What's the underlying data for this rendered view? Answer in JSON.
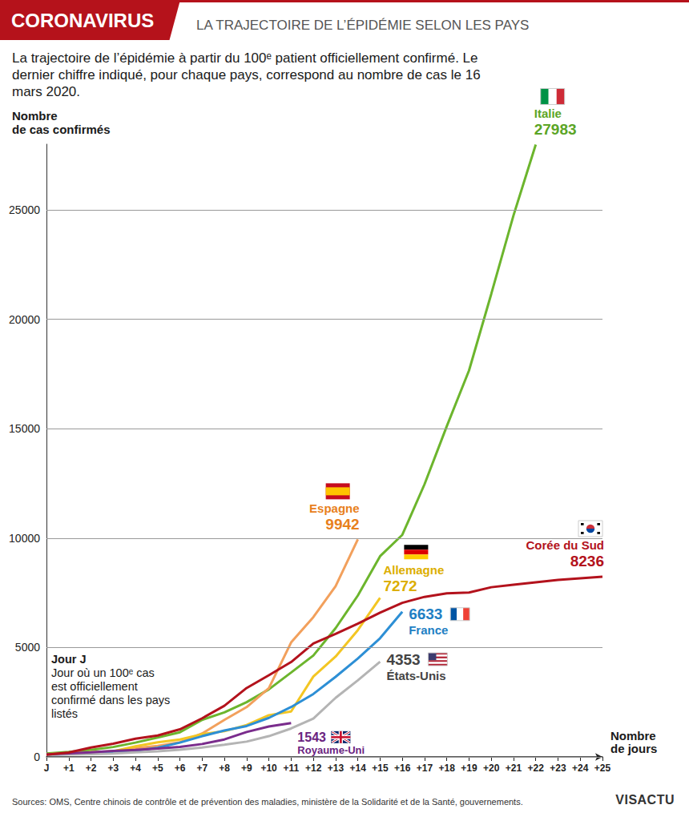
{
  "chart_data": {
    "type": "line",
    "kicker": "CORONAVIRUS",
    "title": "LA TRAJECTOIRE DE L’ÉPIDÉMIE SELON LES PAYS",
    "subtitle": "La trajectoire de l’épidémie à partir du 100ᵉ patient officiellement confirmé. Le dernier chiffre indiqué, pour chaque pays, correspond au nombre de cas le 16 mars 2020.",
    "y_label": "Nombre\nde cas confirmés",
    "x_label": "Nombre\nde jours",
    "annotation": {
      "title": "Jour J",
      "text": "Jour où un 100ᵉ cas est officiellement confirmé dans les pays listés"
    },
    "source": "Sources: OMS, Centre chinois de contrôle et de prévention des maladies, ministère de la Solidarité et de la Santé, gouvernements.",
    "credit": "VISACTU",
    "categories": [
      "J",
      "+1",
      "+2",
      "+3",
      "+4",
      "+5",
      "+6",
      "+7",
      "+8",
      "+9",
      "+10",
      "+11",
      "+12",
      "+13",
      "+14",
      "+15",
      "+16",
      "+17",
      "+18",
      "+19",
      "+20",
      "+21",
      "+22",
      "+23",
      "+24",
      "+25"
    ],
    "series": [
      {
        "name": "Italie",
        "color": "#6cb52d",
        "values": [
          155,
          229,
          322,
          453,
          655,
          888,
          1128,
          1694,
          2036,
          2502,
          3089,
          3858,
          4636,
          5883,
          7375,
          9172,
          10149,
          12462,
          15113,
          17660,
          21157,
          24747,
          27983,
          null,
          null,
          null
        ]
      },
      {
        "name": "Espagne",
        "color": "#f2a05c",
        "values": [
          120,
          165,
          222,
          259,
          400,
          500,
          673,
          1073,
          1695,
          2277,
          3146,
          5232,
          6391,
          7798,
          9942,
          null,
          null,
          null,
          null,
          null,
          null,
          null,
          null,
          null,
          null,
          null
        ]
      },
      {
        "name": "Allemagne",
        "color": "#f3c623",
        "values": [
          130,
          159,
          196,
          262,
          482,
          670,
          799,
          1040,
          1176,
          1457,
          1908,
          2078,
          3675,
          4585,
          5795,
          7272,
          null,
          null,
          null,
          null,
          null,
          null,
          null,
          null,
          null,
          null
        ]
      },
      {
        "name": "France",
        "color": "#2d8fd5",
        "values": [
          100,
          130,
          191,
          212,
          285,
          423,
          653,
          949,
          1209,
          1412,
          1784,
          2281,
          2876,
          3661,
          4499,
          5423,
          6633,
          null,
          null,
          null,
          null,
          null,
          null,
          null,
          null,
          null
        ]
      },
      {
        "name": "États-Unis",
        "color": "#b4b4b4",
        "values": [
          100,
          110,
          130,
          160,
          210,
          260,
          330,
          430,
          560,
          700,
          950,
          1300,
          1750,
          2700,
          3500,
          4353,
          null,
          null,
          null,
          null,
          null,
          null,
          null,
          null,
          null,
          null
        ]
      },
      {
        "name": "Royaume-Uni",
        "color": "#7a2c8c",
        "values": [
          116,
          164,
          207,
          273,
          321,
          382,
          456,
          590,
          798,
          1140,
          1391,
          1543,
          null,
          null,
          null,
          null,
          null,
          null,
          null,
          null,
          null,
          null,
          null,
          null,
          null,
          null
        ]
      },
      {
        "name": "Corée du Sud",
        "color": "#b3121c",
        "values": [
          104,
          204,
          433,
          602,
          833,
          977,
          1261,
          1766,
          2337,
          3150,
          3736,
          4335,
          5186,
          5621,
          6088,
          6593,
          7041,
          7314,
          7478,
          7513,
          7755,
          7869,
          7979,
          8086,
          8162,
          8236
        ]
      }
    ],
    "ylim": [
      0,
      28000
    ],
    "yticks": [
      0,
      5000,
      10000,
      15000,
      20000,
      25000
    ],
    "grid": true
  }
}
